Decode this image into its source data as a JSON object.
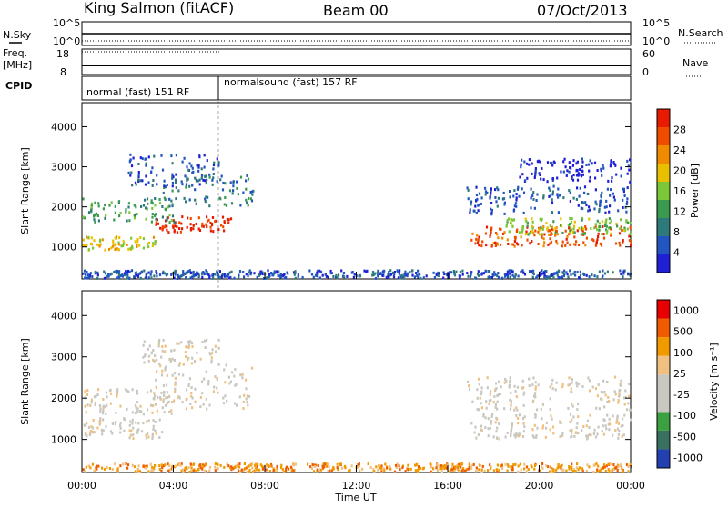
{
  "header": {
    "station": "King Salmon (fitACF)",
    "beam": "Beam 00",
    "date": "07/Oct/2013"
  },
  "noise_panel": {
    "left_label": "N.Sky",
    "right_label": "N.Search",
    "left_ticks": [
      "10^5",
      "10^0"
    ],
    "right_ticks": [
      "10^5",
      "10^0"
    ]
  },
  "freq_panel": {
    "left_label": "Freq.",
    "left_unit": "[MHz]",
    "right_label": "Nave",
    "left_ticks": [
      "18",
      "8"
    ],
    "right_ticks": [
      "60",
      "0"
    ]
  },
  "cpid_panel": {
    "label": "CPID",
    "segments": [
      {
        "name": "normal (fast) 151 RF",
        "start_hour": 0.0,
        "end_hour": 6.0
      },
      {
        "name": "normalsound (fast) 157 RF",
        "start_hour": 6.0,
        "end_hour": 24.0
      }
    ]
  },
  "colors": {
    "power_scale": [
      "#1f1fd6",
      "#2255c0",
      "#2e7a7a",
      "#3a9a50",
      "#7ac83a",
      "#e8c000",
      "#f08a00",
      "#f04c00",
      "#e81a00"
    ],
    "velocity_scale": [
      "#e80000",
      "#f05a00",
      "#f09a00",
      "#f0c080",
      "#c8c8c0",
      "#c8c8c0",
      "#3aa040",
      "#3a7060",
      "#2440b0"
    ]
  },
  "chart_data": [
    {
      "type": "heatmap",
      "title": "Power",
      "ylabel": "Slant Range [km]",
      "xlabel": "Time UT",
      "x_range_hours": [
        0,
        24
      ],
      "ylim": [
        200,
        4600
      ],
      "y_ticks": [
        1000,
        2000,
        3000,
        4000
      ],
      "colorbar": {
        "label": "Power [dB]",
        "range": [
          0,
          32
        ],
        "tick_labels": [
          "4",
          "8",
          "12",
          "16",
          "20",
          "24",
          "28"
        ]
      },
      "echo_regions": [
        {
          "t0": 0.0,
          "t1": 3.2,
          "r0": 900,
          "r1": 1250,
          "level": 5
        },
        {
          "t0": 3.2,
          "t1": 6.5,
          "r0": 1350,
          "r1": 1750,
          "level": 8
        },
        {
          "t0": 0.0,
          "t1": 4.0,
          "r0": 1600,
          "r1": 2200,
          "level": 3
        },
        {
          "t0": 3.5,
          "t1": 7.5,
          "r0": 2000,
          "r1": 2800,
          "level": 2
        },
        {
          "t0": 2.0,
          "t1": 6.0,
          "r0": 2500,
          "r1": 3300,
          "level": 1
        },
        {
          "t0": 17.0,
          "t1": 24.0,
          "r0": 1000,
          "r1": 1500,
          "level": 7
        },
        {
          "t0": 18.5,
          "t1": 24.0,
          "r0": 1300,
          "r1": 1700,
          "level": 4
        },
        {
          "t0": 16.8,
          "t1": 24.0,
          "r0": 1800,
          "r1": 2500,
          "level": 1
        },
        {
          "t0": 19.0,
          "t1": 24.0,
          "r0": 2600,
          "r1": 3200,
          "level": 0
        },
        {
          "t0": 0.0,
          "t1": 24.0,
          "r0": 200,
          "r1": 400,
          "level": 1
        }
      ]
    },
    {
      "type": "heatmap",
      "title": "Velocity",
      "ylabel": "Slant Range [km]",
      "xlabel": "Time UT",
      "x_range_hours": [
        0,
        24
      ],
      "ylim": [
        200,
        4600
      ],
      "y_ticks": [
        1000,
        2000,
        3000,
        4000
      ],
      "x_tick_labels": [
        "00:00",
        "04:00",
        "08:00",
        "12:00",
        "16:00",
        "20:00",
        "00:00"
      ],
      "colorbar": {
        "label": "Velocity [m s⁻¹]",
        "tick_labels": [
          "1000",
          "500",
          "100",
          "25",
          "-25",
          "-100",
          "-500",
          "-1000"
        ]
      },
      "echo_regions": [
        {
          "t0": 0.0,
          "t1": 3.5,
          "r0": 1000,
          "r1": 1500,
          "level": 4
        },
        {
          "t0": 0.0,
          "t1": 4.0,
          "r0": 1600,
          "r1": 2200,
          "level": 4
        },
        {
          "t0": 3.0,
          "t1": 7.5,
          "r0": 1700,
          "r1": 2800,
          "level": 4
        },
        {
          "t0": 2.5,
          "t1": 6.0,
          "r0": 2800,
          "r1": 3400,
          "level": 4
        },
        {
          "t0": 17.0,
          "t1": 24.0,
          "r0": 1000,
          "r1": 1600,
          "level": 4
        },
        {
          "t0": 16.8,
          "t1": 24.0,
          "r0": 1700,
          "r1": 2500,
          "level": 4
        },
        {
          "t0": 0.0,
          "t1": 24.0,
          "r0": 200,
          "r1": 400,
          "level": 2
        }
      ]
    }
  ]
}
